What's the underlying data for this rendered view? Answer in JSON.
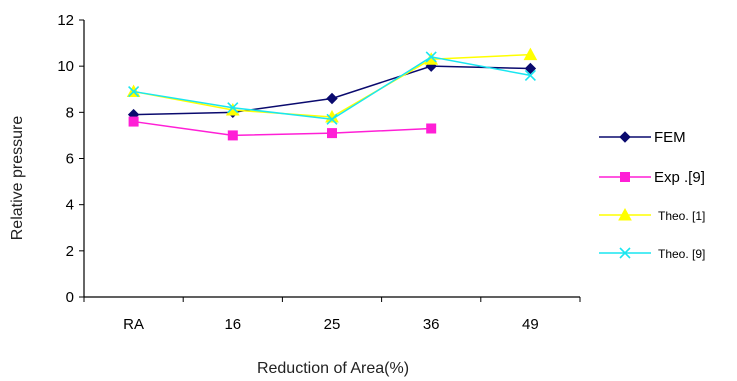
{
  "chart_data": {
    "type": "line",
    "title": "",
    "xlabel": "Reduction of Area(%)",
    "ylabel": "Relative pressure",
    "categories": [
      "RA",
      "16",
      "25",
      "36",
      "49"
    ],
    "ylim": [
      0,
      12
    ],
    "yticks": [
      "0",
      "2",
      "4",
      "6",
      "8",
      "10",
      "12"
    ],
    "grid": false,
    "legend_position": "right",
    "series": [
      {
        "name": "FEM",
        "values": [
          7.9,
          8.0,
          8.6,
          10.0,
          9.9
        ],
        "color": "#0a0a6e",
        "marker": "diamond"
      },
      {
        "name": "Exp .[9]",
        "values": [
          7.6,
          7.0,
          7.1,
          7.3,
          null
        ],
        "color": "#ff1fd6",
        "marker": "square"
      },
      {
        "name": "Theo. [1]",
        "values": [
          8.9,
          8.1,
          7.8,
          10.3,
          10.5
        ],
        "color": "#ffff00",
        "marker": "triangle"
      },
      {
        "name": "Theo. [9]",
        "values": [
          8.9,
          8.2,
          7.7,
          10.4,
          9.6
        ],
        "color": "#19e6f0",
        "marker": "cross"
      }
    ]
  }
}
